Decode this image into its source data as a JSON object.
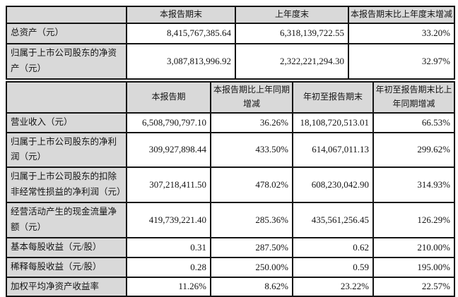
{
  "colors": {
    "header_bg": "#d9d9d9",
    "label_bg": "#d9d9d9",
    "cell_bg": "#ffffff",
    "border": "#141414",
    "text": "#141414"
  },
  "table1": {
    "headers": [
      "",
      "本报告期末",
      "上年度末",
      "本报告期末比上年度末增减"
    ],
    "rows": [
      {
        "label": "总资产（元）",
        "values": [
          "8,415,767,385.64",
          "6,318,139,722.55",
          "33.20%"
        ]
      },
      {
        "label": "归属于上市公司股东的净资产（元）",
        "values": [
          "3,087,813,996.92",
          "2,322,221,294.30",
          "32.97%"
        ]
      }
    ]
  },
  "table2": {
    "headers": [
      "",
      "本报告期",
      "本报告期比上年同期增减",
      "年初至报告期末",
      "年初至报告期末比上年同期增减"
    ],
    "rows": [
      {
        "label": "营业收入（元）",
        "values": [
          "6,508,790,797.10",
          "36.26%",
          "18,108,720,513.01",
          "66.53%"
        ]
      },
      {
        "label": "归属于上市公司股东的净利润（元）",
        "values": [
          "309,927,898.44",
          "433.50%",
          "614,067,011.13",
          "299.62%"
        ]
      },
      {
        "label": "归属于上市公司股东的扣除非经常性损益的净利润（元）",
        "values": [
          "307,218,411.50",
          "478.02%",
          "608,230,042.90",
          "314.93%"
        ]
      },
      {
        "label": "经营活动产生的现金流量净额（元）",
        "values": [
          "419,739,221.40",
          "285.36%",
          "435,561,256.45",
          "126.29%"
        ]
      },
      {
        "label": "基本每股收益（元/股）",
        "values": [
          "0.31",
          "287.50%",
          "0.62",
          "210.00%"
        ]
      },
      {
        "label": "稀释每股收益（元/股）",
        "values": [
          "0.28",
          "250.00%",
          "0.59",
          "195.00%"
        ]
      },
      {
        "label": "加权平均净资产收益率",
        "values": [
          "11.26%",
          "8.62%",
          "23.22%",
          "22.57%"
        ]
      }
    ]
  }
}
